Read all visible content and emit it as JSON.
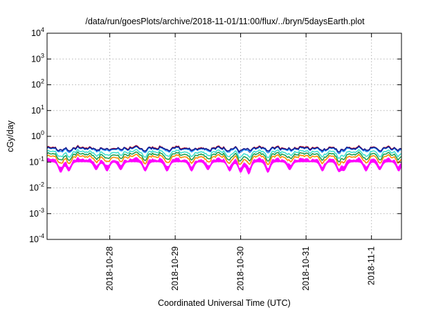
{
  "chart_data": {
    "type": "line",
    "title": "/data/run/goesPlots/archive/2018-11-01/11:00/flux/../bryn/5daysEarth.plot",
    "xlabel": "Coordinated Universal Time (UTC)",
    "ylabel": "cGy/day",
    "yscale": "log",
    "ylim": [
      0.0001,
      10000
    ],
    "y_ticks": [
      {
        "value": 0.0001,
        "base": "10",
        "exp": "-4"
      },
      {
        "value": 0.001,
        "base": "10",
        "exp": "-3"
      },
      {
        "value": 0.01,
        "base": "10",
        "exp": "-2"
      },
      {
        "value": 0.1,
        "base": "10",
        "exp": "-1"
      },
      {
        "value": 1,
        "base": "10",
        "exp": "0"
      },
      {
        "value": 10,
        "base": "10",
        "exp": "1"
      },
      {
        "value": 100,
        "base": "10",
        "exp": "2"
      },
      {
        "value": 1000,
        "base": "10",
        "exp": "3"
      },
      {
        "value": 10000,
        "base": "10",
        "exp": "4"
      }
    ],
    "xlim": [
      "2018-10-27T01:00",
      "2018-11-01T11:00"
    ],
    "x_ticks": [
      "2018-10-28",
      "2018-10-29",
      "2018-10-30",
      "2018-10-31",
      "2018-11-1"
    ],
    "x_tick_dates": [
      "2018-10-28T00:00",
      "2018-10-29T00:00",
      "2018-10-30T00:00",
      "2018-10-31T00:00",
      "2018-11-01T00:00"
    ],
    "grid": true,
    "legend": "none",
    "series": [
      {
        "color": "#ff00ff",
        "base": 0.13,
        "fill": true
      },
      {
        "color": "#ff8c00",
        "base": 0.17
      },
      {
        "color": "#1fa050",
        "base": 0.21
      },
      {
        "color": "#40e0d0",
        "base": 0.26
      },
      {
        "color": "#e01010",
        "base": 0.37
      },
      {
        "color": "#1e90ff",
        "base": 0.34
      },
      {
        "color": "#1a1a8c",
        "base": 0.355
      }
    ],
    "dips": [
      {
        "t": "2018-10-27T06:00",
        "depth": 0.45
      },
      {
        "t": "2018-10-27T09:00",
        "depth": 0.5
      },
      {
        "t": "2018-10-27T19:00",
        "depth": 0.55
      },
      {
        "t": "2018-10-27T23:00",
        "depth": 0.5
      },
      {
        "t": "2018-10-28T04:00",
        "depth": 0.55
      },
      {
        "t": "2018-10-28T13:00",
        "depth": 0.5
      },
      {
        "t": "2018-10-28T21:00",
        "depth": 0.5
      },
      {
        "t": "2018-10-29T06:00",
        "depth": 0.5
      },
      {
        "t": "2018-10-29T12:00",
        "depth": 0.55
      },
      {
        "t": "2018-10-29T20:00",
        "depth": 0.5
      },
      {
        "t": "2018-10-30T00:00",
        "depth": 0.45
      },
      {
        "t": "2018-10-30T03:00",
        "depth": 0.4
      },
      {
        "t": "2018-10-30T10:00",
        "depth": 0.45
      },
      {
        "t": "2018-10-30T18:00",
        "depth": 0.55
      },
      {
        "t": "2018-10-31T06:00",
        "depth": 0.5
      },
      {
        "t": "2018-10-31T12:00",
        "depth": 0.5
      },
      {
        "t": "2018-10-31T14:00",
        "depth": 0.55
      },
      {
        "t": "2018-10-31T22:00",
        "depth": 0.5
      },
      {
        "t": "2018-11-01T03:00",
        "depth": 0.55
      },
      {
        "t": "2018-11-01T10:00",
        "depth": 0.5
      }
    ]
  }
}
